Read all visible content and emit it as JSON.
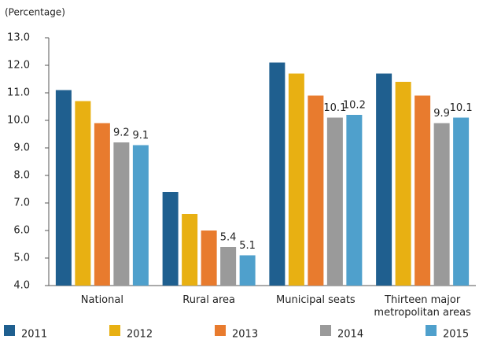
{
  "chart_data": {
    "type": "bar",
    "y_label": "(Percentage)",
    "categories": [
      "National",
      "Rural area",
      "Municipal seats",
      "Thirteen major metropolitan areas"
    ],
    "series": [
      {
        "name": "2011",
        "color": "#1f5f8f",
        "values": [
          11.1,
          7.4,
          12.1,
          11.7
        ]
      },
      {
        "name": "2012",
        "color": "#e8b012",
        "values": [
          10.7,
          6.6,
          11.7,
          11.4
        ]
      },
      {
        "name": "2013",
        "color": "#e87b2e",
        "values": [
          9.9,
          6.0,
          10.9,
          10.9
        ]
      },
      {
        "name": "2014",
        "color": "#9a9a9a",
        "values": [
          9.2,
          5.4,
          10.1,
          9.9
        ],
        "show_labels": true
      },
      {
        "name": "2015",
        "color": "#4fa0cc",
        "values": [
          9.1,
          5.1,
          10.2,
          10.1
        ],
        "show_labels": true
      }
    ],
    "ylim": [
      4,
      13
    ],
    "yticks": [
      {
        "value": 4,
        "label": "4.0"
      },
      {
        "value": 5,
        "label": "5.0"
      },
      {
        "value": 6,
        "label": "6.0"
      },
      {
        "value": 7,
        "label": "7.0"
      },
      {
        "value": 8,
        "label": "8.0"
      },
      {
        "value": 9,
        "label": "9.0"
      },
      {
        "value": 10,
        "label": "10.0"
      },
      {
        "value": 11,
        "label": "11.0"
      },
      {
        "value": 12,
        "label": "12.0"
      },
      {
        "value": 13,
        "label": "13.0"
      }
    ],
    "grid": false
  }
}
